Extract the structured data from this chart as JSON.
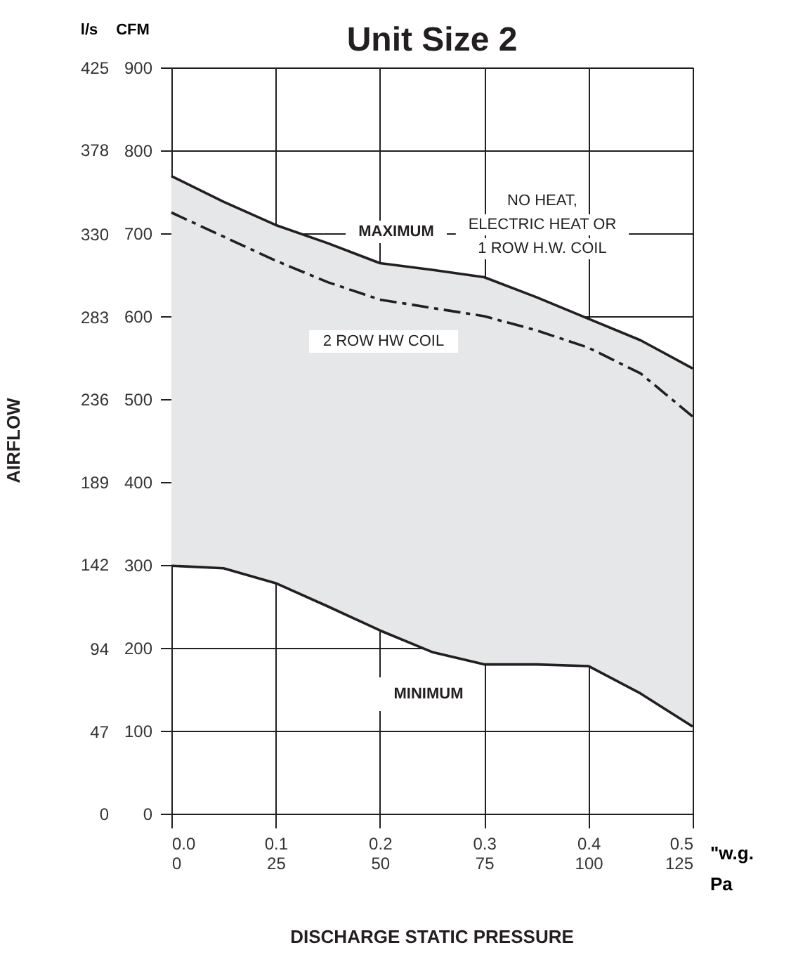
{
  "chart_data": {
    "type": "line",
    "title": "Unit Size 2",
    "x": [
      0,
      0.05,
      0.1,
      0.15,
      0.2,
      0.25,
      0.3,
      0.35,
      0.4,
      0.45,
      0.5
    ],
    "series": [
      {
        "color": "#231f20",
        "line_style": "solid",
        "values": [
          769,
          738,
          710,
          688,
          664,
          656,
          647,
          623,
          597,
          571,
          537
        ]
      },
      {
        "color": "#231f20",
        "line_style": "dashed",
        "values": [
          725,
          696,
          667,
          641,
          620,
          610,
          600,
          583,
          562,
          531,
          479
        ],
        "lower": [
          299,
          296,
          278,
          250,
          221,
          195,
          180,
          180,
          178,
          145,
          105
        ],
        "upper": [
          769,
          738,
          710,
          688,
          664,
          656,
          647,
          623,
          597,
          571,
          537
        ]
      },
      {
        "color": "#231f20",
        "line_style": "solid",
        "values": [
          299,
          296,
          278,
          250,
          221,
          195,
          180,
          180,
          178,
          145,
          105
        ]
      }
    ],
    "xlim": [
      0,
      0.5
    ],
    "xticks": [
      {
        "value": 0,
        "label": "0.0"
      },
      0.1,
      0.2,
      0.3,
      0.4,
      0.5
    ],
    "xlabel": "\"w.g.",
    "x2lim": [
      0,
      125
    ],
    "x2ticks": [
      0,
      25,
      50,
      75,
      100,
      125
    ],
    "x2label": "Pa",
    "ylim": [
      0,
      900
    ],
    "yticks": [
      0,
      100,
      200,
      300,
      400,
      500,
      600,
      700,
      800,
      900
    ],
    "ylabel": "CFM",
    "y2lim": [
      0,
      425
    ],
    "y2ticks": [
      0,
      47,
      94,
      142,
      189,
      236,
      283,
      330,
      378,
      425
    ],
    "y2label": "l/s",
    "grid": true,
    "annotations": [
      "MAXIMUM",
      "NO HEAT,\nELECTRIC HEAT OR\n1 ROW H.W. COIL",
      "2 ROW  HW COIL",
      "MINIMUM",
      "AIRFLOW",
      "DISCHARGE STATIC PRESSURE"
    ]
  }
}
